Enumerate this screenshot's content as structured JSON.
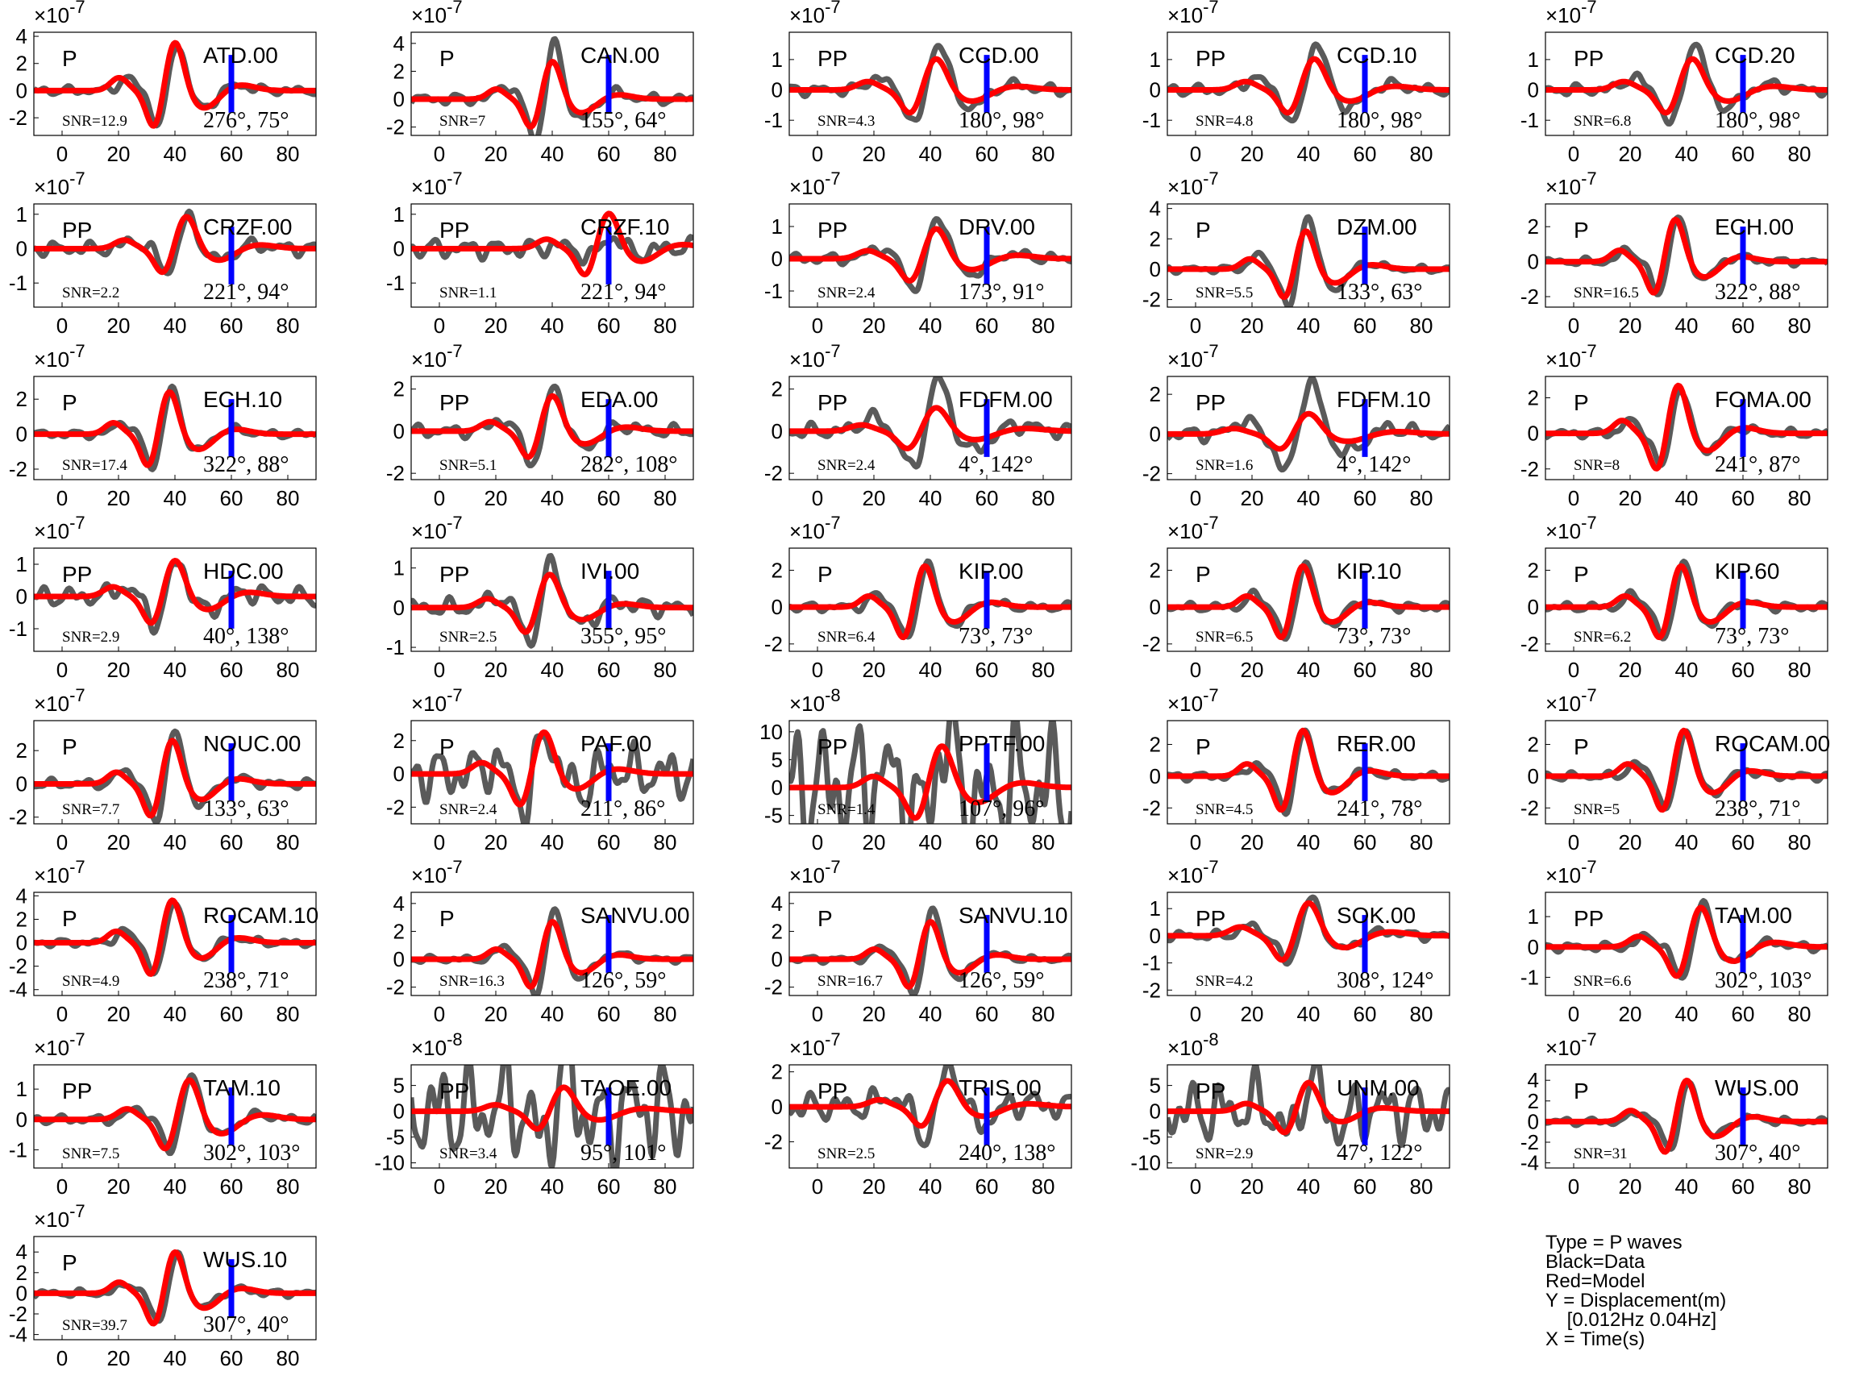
{
  "chart_data": {
    "type": "line",
    "series_colors": {
      "data": "#5a5a5a",
      "model": "#ff0000",
      "marker": "#0000ff"
    },
    "x_ticks": [
      0,
      20,
      40,
      60,
      80
    ],
    "marker_x": 60,
    "panels": [
      {
        "station": "ATD.00",
        "phase": "P",
        "snr": "SNR=12.9",
        "angles": "276°, 75°",
        "exponent": "-7",
        "yticks": [
          -2,
          0,
          2,
          4
        ],
        "ylim": [
          -3.3,
          4.3
        ],
        "amp": 3.8,
        "pk": 40,
        "w": 4.5,
        "data_scale": 0.97,
        "noise": 0.05
      },
      {
        "station": "CAN.00",
        "phase": "P",
        "snr": "SNR=7",
        "angles": "155°, 64°",
        "exponent": "-7",
        "yticks": [
          -2,
          0,
          2,
          4
        ],
        "ylim": [
          -2.6,
          4.8
        ],
        "amp": 2.9,
        "pk": 40,
        "w": 4.5,
        "data_scale": 1.45,
        "noise": 0.08
      },
      {
        "station": "CCD.00",
        "phase": "PP",
        "snr": "SNR=4.3",
        "angles": "180°, 98°",
        "exponent": "-7",
        "yticks": [
          -1,
          0,
          1
        ],
        "ylim": [
          -1.5,
          1.9
        ],
        "amp": 1.1,
        "pk": 42,
        "w": 5.5,
        "data_scale": 1.5,
        "noise": 0.1
      },
      {
        "station": "CCD.10",
        "phase": "PP",
        "snr": "SNR=4.8",
        "angles": "180°, 98°",
        "exponent": "-7",
        "yticks": [
          -1,
          0,
          1
        ],
        "ylim": [
          -1.5,
          1.9
        ],
        "amp": 1.1,
        "pk": 42,
        "w": 5.5,
        "data_scale": 1.5,
        "noise": 0.1
      },
      {
        "station": "CCD.20",
        "phase": "PP",
        "snr": "SNR=6.8",
        "angles": "180°, 98°",
        "exponent": "-7",
        "yticks": [
          -1,
          0,
          1
        ],
        "ylim": [
          -1.5,
          1.9
        ],
        "amp": 1.1,
        "pk": 42,
        "w": 5.5,
        "data_scale": 1.5,
        "noise": 0.1
      },
      {
        "station": "CRZF.00",
        "phase": "PP",
        "snr": "SNR=2.2",
        "angles": "221°, 94°",
        "exponent": "-7",
        "yticks": [
          -1,
          0,
          1
        ],
        "ylim": [
          -1.7,
          1.3
        ],
        "amp": 1.0,
        "pk": 44,
        "w": 5,
        "data_scale": 0.95,
        "noise": 0.12
      },
      {
        "station": "CRZF.10",
        "phase": "PP",
        "snr": "SNR=1.1",
        "angles": "221°, 94°",
        "exponent": "-7",
        "yticks": [
          -1,
          0,
          1
        ],
        "ylim": [
          -1.7,
          1.3
        ],
        "amp": 1.1,
        "pk": 60,
        "w": 5,
        "data_scale": 0.35,
        "noise": 0.15
      },
      {
        "station": "DRV.00",
        "phase": "PP",
        "snr": "SNR=2.4",
        "angles": "173°, 91°",
        "exponent": "-7",
        "yticks": [
          -1,
          0,
          1
        ],
        "ylim": [
          -1.5,
          1.7
        ],
        "amp": 1.0,
        "pk": 42,
        "w": 5.5,
        "data_scale": 1.4,
        "noise": 0.1
      },
      {
        "station": "DZM.00",
        "phase": "P",
        "snr": "SNR=5.5",
        "angles": "133°, 63°",
        "exponent": "-7",
        "yticks": [
          -2,
          0,
          2,
          4
        ],
        "ylim": [
          -2.5,
          4.3
        ],
        "amp": 2.7,
        "pk": 39,
        "w": 4.5,
        "data_scale": 1.4,
        "noise": 0.05
      },
      {
        "station": "ECH.00",
        "phase": "P",
        "snr": "SNR=16.5",
        "angles": "322°, 88°",
        "exponent": "-7",
        "yticks": [
          -2,
          0,
          2
        ],
        "ylim": [
          -2.6,
          3.3
        ],
        "amp": 2.6,
        "pk": 36,
        "w": 4.5,
        "data_scale": 1.05,
        "noise": 0.05
      },
      {
        "station": "ECH.10",
        "phase": "P",
        "snr": "SNR=17.4",
        "angles": "322°, 88°",
        "exponent": "-7",
        "yticks": [
          -2,
          0,
          2
        ],
        "ylim": [
          -2.6,
          3.3
        ],
        "amp": 2.6,
        "pk": 38,
        "w": 4.5,
        "data_scale": 1.05,
        "noise": 0.05
      },
      {
        "station": "EDA.00",
        "phase": "PP",
        "snr": "SNR=5.1",
        "angles": "282°, 108°",
        "exponent": "-7",
        "yticks": [
          -2,
          0,
          2
        ],
        "ylim": [
          -2.3,
          2.6
        ],
        "amp": 1.8,
        "pk": 40,
        "w": 5,
        "data_scale": 1.25,
        "noise": 0.1
      },
      {
        "station": "FDFM.00",
        "phase": "PP",
        "snr": "SNR=2.4",
        "angles": "4°, 142°",
        "exponent": "-7",
        "yticks": [
          -2,
          0,
          2
        ],
        "ylim": [
          -2.3,
          2.6
        ],
        "amp": 1.2,
        "pk": 42,
        "w": 6,
        "data_scale": 2.2,
        "noise": 0.18
      },
      {
        "station": "FDFM.10",
        "phase": "PP",
        "snr": "SNR=1.6",
        "angles": "4°, 142°",
        "exponent": "-7",
        "yticks": [
          -2,
          0,
          2
        ],
        "ylim": [
          -2.3,
          2.9
        ],
        "amp": 1.1,
        "pk": 40,
        "w": 6,
        "data_scale": 2.5,
        "noise": 0.2
      },
      {
        "station": "FOMA.00",
        "phase": "P",
        "snr": "SNR=8",
        "angles": "241°, 87°",
        "exponent": "-7",
        "yticks": [
          -2,
          0,
          2
        ],
        "ylim": [
          -2.6,
          3.2
        ],
        "amp": 2.9,
        "pk": 37,
        "w": 4.5,
        "data_scale": 0.95,
        "noise": 0.05
      },
      {
        "station": "HDC.00",
        "phase": "PP",
        "snr": "SNR=2.9",
        "angles": "40°, 138°",
        "exponent": "-7",
        "yticks": [
          -1,
          0,
          1
        ],
        "ylim": [
          -1.7,
          1.5
        ],
        "amp": 1.2,
        "pk": 40,
        "w": 5,
        "data_scale": 1.0,
        "noise": 0.15
      },
      {
        "station": "IVI.00",
        "phase": "PP",
        "snr": "SNR=2.5",
        "angles": "355°, 95°",
        "exponent": "-7",
        "yticks": [
          -1,
          0,
          1
        ],
        "ylim": [
          -1.1,
          1.5
        ],
        "amp": 0.9,
        "pk": 39,
        "w": 5,
        "data_scale": 1.35,
        "noise": 0.15
      },
      {
        "station": "KIP.00",
        "phase": "P",
        "snr": "SNR=6.4",
        "angles": "73°, 73°",
        "exponent": "-7",
        "yticks": [
          -2,
          0,
          2
        ],
        "ylim": [
          -2.4,
          3.2
        ],
        "amp": 2.4,
        "pk": 38,
        "w": 4.5,
        "data_scale": 1.1,
        "noise": 0.06
      },
      {
        "station": "KIP.10",
        "phase": "P",
        "snr": "SNR=6.5",
        "angles": "73°, 73°",
        "exponent": "-7",
        "yticks": [
          -2,
          0,
          2
        ],
        "ylim": [
          -2.4,
          3.2
        ],
        "amp": 2.4,
        "pk": 38,
        "w": 4.5,
        "data_scale": 1.1,
        "noise": 0.06
      },
      {
        "station": "KIP.60",
        "phase": "P",
        "snr": "SNR=6.2",
        "angles": "73°, 73°",
        "exponent": "-7",
        "yticks": [
          -2,
          0,
          2
        ],
        "ylim": [
          -2.4,
          3.2
        ],
        "amp": 2.4,
        "pk": 38,
        "w": 4.5,
        "data_scale": 1.1,
        "noise": 0.06
      },
      {
        "station": "NOUC.00",
        "phase": "P",
        "snr": "SNR=7.7",
        "angles": "133°, 63°",
        "exponent": "-7",
        "yticks": [
          -2,
          0,
          2
        ],
        "ylim": [
          -2.4,
          3.8
        ],
        "amp": 2.8,
        "pk": 39,
        "w": 4.5,
        "data_scale": 1.2,
        "noise": 0.06
      },
      {
        "station": "PAF.00",
        "phase": "P",
        "snr": "SNR=2.4",
        "angles": "211°, 86°",
        "exponent": "-7",
        "yticks": [
          -2,
          0,
          2
        ],
        "ylim": [
          -3.0,
          3.2
        ],
        "amp": 2.7,
        "pk": 37,
        "w": 5,
        "data_scale": 1.0,
        "noise": 0.35
      },
      {
        "station": "PPTF.00",
        "phase": "PP",
        "snr": "SNR=1.4",
        "angles": "107°, 96°",
        "exponent": "-8",
        "yticks": [
          -5,
          0,
          5,
          10
        ],
        "ylim": [
          -6.5,
          12
        ],
        "amp": 8,
        "pk": 44,
        "w": 5.5,
        "data_scale": 1.15,
        "noise": 0.9
      },
      {
        "station": "RER.00",
        "phase": "P",
        "snr": "SNR=4.5",
        "angles": "241°, 78°",
        "exponent": "-7",
        "yticks": [
          -2,
          0,
          2
        ],
        "ylim": [
          -3.0,
          3.5
        ],
        "amp": 3.1,
        "pk": 38,
        "w": 4.5,
        "data_scale": 1.0,
        "noise": 0.05
      },
      {
        "station": "ROCAM.00",
        "phase": "P",
        "snr": "SNR=5",
        "angles": "238°, 71°",
        "exponent": "-7",
        "yticks": [
          -2,
          0,
          2
        ],
        "ylim": [
          -3.0,
          3.5
        ],
        "amp": 3.1,
        "pk": 39,
        "w": 4.5,
        "data_scale": 1.0,
        "noise": 0.05
      },
      {
        "station": "ROCAM.10",
        "phase": "P",
        "snr": "SNR=4.9",
        "angles": "238°, 71°",
        "exponent": "-7",
        "yticks": [
          -4,
          -2,
          0,
          2,
          4
        ],
        "ylim": [
          -4.5,
          4.3
        ],
        "amp": 3.9,
        "pk": 39,
        "w": 4.5,
        "data_scale": 1.0,
        "noise": 0.05
      },
      {
        "station": "SANVU.00",
        "phase": "P",
        "snr": "SNR=16.3",
        "angles": "126°, 59°",
        "exponent": "-7",
        "yticks": [
          -2,
          0,
          2,
          4
        ],
        "ylim": [
          -2.6,
          4.8
        ],
        "amp": 2.9,
        "pk": 40,
        "w": 4.5,
        "data_scale": 1.3,
        "noise": 0.05
      },
      {
        "station": "SANVU.10",
        "phase": "P",
        "snr": "SNR=16.7",
        "angles": "126°, 59°",
        "exponent": "-7",
        "yticks": [
          -2,
          0,
          2,
          4
        ],
        "ylim": [
          -2.6,
          4.8
        ],
        "amp": 2.9,
        "pk": 40,
        "w": 4.5,
        "data_scale": 1.3,
        "noise": 0.05
      },
      {
        "station": "SOK.00",
        "phase": "PP",
        "snr": "SNR=4.2",
        "angles": "308°, 124°",
        "exponent": "-7",
        "yticks": [
          -2,
          -1,
          0,
          1
        ],
        "ylim": [
          -2.2,
          1.6
        ],
        "amp": 1.3,
        "pk": 40,
        "w": 5.5,
        "data_scale": 1.1,
        "noise": 0.08
      },
      {
        "station": "TAM.00",
        "phase": "PP",
        "snr": "SNR=6.6",
        "angles": "302°, 103°",
        "exponent": "-7",
        "yticks": [
          -1,
          0,
          1
        ],
        "ylim": [
          -1.6,
          1.8
        ],
        "amp": 1.4,
        "pk": 45,
        "w": 5,
        "data_scale": 1.05,
        "noise": 0.06
      },
      {
        "station": "TAM.10",
        "phase": "PP",
        "snr": "SNR=7.5",
        "angles": "302°, 103°",
        "exponent": "-7",
        "yticks": [
          -1,
          0,
          1
        ],
        "ylim": [
          -1.6,
          1.8
        ],
        "amp": 1.4,
        "pk": 45,
        "w": 5,
        "data_scale": 1.05,
        "noise": 0.06
      },
      {
        "station": "TAOE.00",
        "phase": "PP",
        "snr": "SNR=3.4",
        "angles": "95°, 101°",
        "exponent": "-8",
        "yticks": [
          -10,
          -5,
          0,
          5
        ],
        "ylim": [
          -11,
          9
        ],
        "amp": 5,
        "pk": 44,
        "w": 5.5,
        "data_scale": 1.6,
        "noise": 1.2
      },
      {
        "station": "TRIS.00",
        "phase": "PP",
        "snr": "SNR=2.5",
        "angles": "240°, 138°",
        "exponent": "-7",
        "yticks": [
          -2,
          0,
          2
        ],
        "ylim": [
          -3.5,
          2.4
        ],
        "amp": 1.6,
        "pk": 46,
        "w": 5.5,
        "data_scale": 1.6,
        "noise": 0.3
      },
      {
        "station": "UNM.00",
        "phase": "PP",
        "snr": "SNR=2.9",
        "angles": "47°, 122°",
        "exponent": "-8",
        "yticks": [
          -10,
          -5,
          0,
          5
        ],
        "ylim": [
          -11,
          9
        ],
        "amp": 6,
        "pk": 40,
        "w": 5,
        "data_scale": 1.2,
        "noise": 0.6
      },
      {
        "station": "WUS.00",
        "phase": "P",
        "snr": "SNR=31",
        "angles": "307°, 40°",
        "exponent": "-7",
        "yticks": [
          -4,
          -2,
          0,
          2,
          4
        ],
        "ylim": [
          -4.5,
          5.5
        ],
        "amp": 4.3,
        "pk": 40,
        "w": 4.5,
        "data_scale": 0.9,
        "noise": 0.05
      },
      {
        "station": "WUS.10",
        "phase": "P",
        "snr": "SNR=39.7",
        "angles": "307°, 40°",
        "exponent": "-7",
        "yticks": [
          -4,
          -2,
          0,
          2,
          4
        ],
        "ylim": [
          -4.5,
          5.5
        ],
        "amp": 4.3,
        "pk": 40,
        "w": 4.5,
        "data_scale": 0.9,
        "noise": 0.05
      }
    ]
  },
  "legend": {
    "lines": [
      "Type = P waves",
      "Black=Data",
      "Red=Model",
      "Y = Displacement(m)",
      "    [0.012Hz 0.04Hz]",
      "X = Time(s)"
    ]
  }
}
